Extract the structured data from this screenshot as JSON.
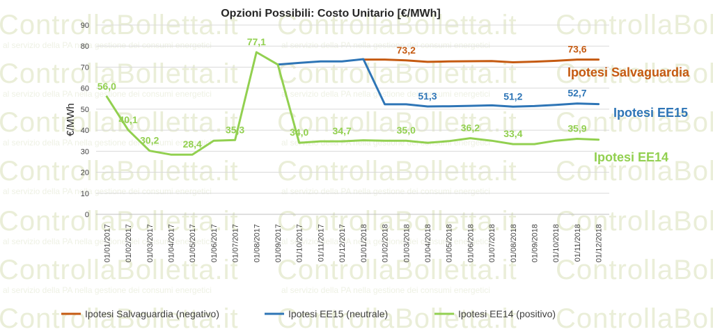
{
  "watermark": {
    "logo": "ControllaBolletta.it",
    "tagline": "al servizio della PA nella gestione dei consumi energetici"
  },
  "chart_data": {
    "type": "line",
    "title": "Opzioni Possibili: Costo Unitario [€/MWh]",
    "xlabel": "",
    "ylabel": "€/MWh",
    "ylim": [
      0,
      90
    ],
    "yticks": [
      0,
      10,
      20,
      30,
      40,
      50,
      60,
      70,
      80,
      90
    ],
    "grid": true,
    "legend_position": "bottom",
    "categories": [
      "01/01/2017",
      "01/02/2017",
      "01/03/2017",
      "01/04/2017",
      "01/05/2017",
      "01/06/2017",
      "01/07/2017",
      "01/08/2017",
      "01/09/2017",
      "01/10/2017",
      "01/11/2017",
      "01/12/2017",
      "01/01/2018",
      "01/02/2018",
      "01/03/2018",
      "01/04/2018",
      "01/05/2018",
      "01/06/2018",
      "01/07/2018",
      "01/08/2018",
      "01/09/2018",
      "01/10/2018",
      "01/11/2018",
      "01/12/2018"
    ],
    "series": [
      {
        "name": "Ipotesi Salvaguardia (negativo)",
        "tag": "Ipotesi Salvaguardia",
        "color": "#c55a11",
        "values": [
          null,
          null,
          null,
          null,
          null,
          null,
          null,
          null,
          null,
          null,
          null,
          null,
          73.6,
          73.6,
          73.2,
          72.5,
          72.7,
          72.8,
          72.9,
          72.3,
          72.6,
          73.0,
          73.6,
          73.6
        ],
        "labels": [
          {
            "i": 14,
            "text": "73,2"
          },
          {
            "i": 22,
            "text": "73,6"
          }
        ]
      },
      {
        "name": "Ipotesi EE15 (neutrale)",
        "tag": "Ipotesi EE15",
        "color": "#2e75b6",
        "values": [
          null,
          null,
          null,
          null,
          null,
          null,
          null,
          null,
          71.2,
          72.0,
          72.7,
          72.7,
          73.8,
          52.3,
          52.3,
          51.3,
          51.4,
          51.6,
          51.8,
          51.2,
          51.5,
          52.0,
          52.7,
          52.4
        ],
        "labels": [
          {
            "i": 15,
            "text": "51,3"
          },
          {
            "i": 19,
            "text": "51,2"
          },
          {
            "i": 22,
            "text": "52,7"
          }
        ]
      },
      {
        "name": "Ipotesi EE14 (positivo)",
        "tag": "Ipotesi EE14",
        "color": "#92d050",
        "values": [
          56.0,
          40.1,
          30.2,
          28.4,
          28.4,
          35.0,
          35.3,
          77.1,
          71.2,
          34.0,
          34.7,
          34.7,
          35.2,
          35.0,
          35.0,
          34.0,
          34.8,
          36.2,
          35.0,
          33.4,
          33.4,
          35.0,
          35.9,
          35.5
        ],
        "labels": [
          {
            "i": 0,
            "text": "56,0"
          },
          {
            "i": 1,
            "text": "40,1"
          },
          {
            "i": 2,
            "text": "30,2"
          },
          {
            "i": 4,
            "text": "28,4"
          },
          {
            "i": 6,
            "text": "35,3"
          },
          {
            "i": 7,
            "text": "77,1"
          },
          {
            "i": 9,
            "text": "34,0"
          },
          {
            "i": 11,
            "text": "34,7"
          },
          {
            "i": 14,
            "text": "35,0"
          },
          {
            "i": 17,
            "text": "36,2"
          },
          {
            "i": 19,
            "text": "33,4"
          },
          {
            "i": 22,
            "text": "35,9"
          }
        ]
      }
    ]
  }
}
